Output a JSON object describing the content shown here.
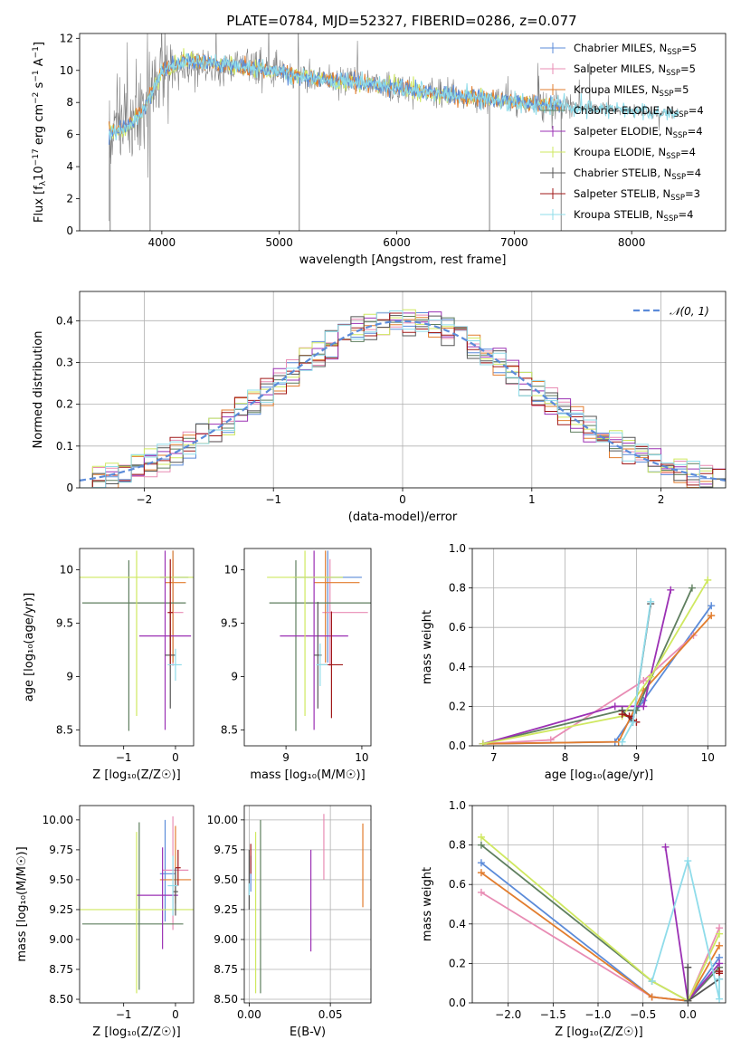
{
  "figure": {
    "title": "PLATE=0784, MJD=52327, FIBERID=0286, z=0.077"
  },
  "colors": {
    "Chabrier MILES": "#5b8bd9",
    "Salpeter MILES": "#e88cb4",
    "Kroupa MILES": "#e27d2e",
    "Chabrier ELODIE": "#5f7f5f",
    "Salpeter ELODIE": "#9b30b4",
    "Kroupa ELODIE": "#cfe860",
    "Chabrier STELIB": "#555555",
    "Salpeter STELIB": "#a01818",
    "Kroupa STELIB": "#8fdcea",
    "data": "#808080",
    "gauss": "#5b8bd9"
  },
  "chart_data": [
    {
      "id": "spectrum",
      "type": "line",
      "title": "PLATE=0784, MJD=52327, FIBERID=0286, z=0.077",
      "xlabel": "wavelength [Angstrom, rest frame]",
      "ylabel_parts": [
        "Flux [f",
        "λ",
        "10",
        "−17",
        " erg cm",
        "−2",
        " s",
        "−1",
        " A",
        "−1",
        "]"
      ],
      "xlim": [
        3300,
        8800
      ],
      "ylim": [
        0,
        12.3
      ],
      "xticks": [
        4000,
        5000,
        6000,
        7000,
        8000
      ],
      "yticks": [
        0,
        2,
        4,
        6,
        8,
        10,
        12
      ],
      "legend_position": "top-right",
      "legend": [
        {
          "name": "Chabrier MILES",
          "nssp": "5"
        },
        {
          "name": "Salpeter MILES",
          "nssp": "5"
        },
        {
          "name": "Kroupa MILES",
          "nssp": "5"
        },
        {
          "name": "Chabrier ELODIE",
          "nssp": "4"
        },
        {
          "name": "Salpeter ELODIE",
          "nssp": "4"
        },
        {
          "name": "Kroupa ELODIE",
          "nssp": "4"
        },
        {
          "name": "Chabrier STELIB",
          "nssp": "4"
        },
        {
          "name": "Salpeter STELIB",
          "nssp": "3"
        },
        {
          "name": "Kroupa STELIB",
          "nssp": "4"
        }
      ],
      "data_trend": {
        "x": [
          3550,
          3700,
          3850,
          4000,
          4200,
          4400,
          4600,
          4800,
          5000,
          5200,
          5400,
          5600,
          5800,
          6000,
          6200,
          6400,
          6600,
          6800,
          7000,
          7200,
          7400,
          7600,
          7800,
          8000,
          8300
        ],
        "y": [
          6.0,
          6.8,
          8.0,
          9.6,
          10.3,
          10.3,
          10.2,
          10.1,
          9.9,
          9.6,
          9.4,
          9.3,
          9.1,
          8.9,
          8.7,
          8.5,
          8.3,
          8.2,
          8.0,
          7.9,
          7.8,
          7.7,
          7.6,
          7.5,
          7.3
        ]
      },
      "model_trend": {
        "x": [
          3550,
          3700,
          3850,
          4000,
          4200,
          4400,
          4600,
          4800,
          5000,
          5200,
          5400,
          5600,
          5800,
          6000,
          6200,
          6400,
          6600,
          6800,
          7000,
          7200,
          7400
        ],
        "y": [
          6.2,
          6.4,
          7.6,
          10.0,
          10.6,
          10.5,
          10.3,
          10.1,
          9.9,
          9.6,
          9.4,
          9.3,
          9.1,
          8.9,
          8.7,
          8.5,
          8.4,
          8.2,
          8.0,
          7.9,
          7.8
        ]
      }
    },
    {
      "id": "residuals",
      "type": "histogram",
      "xlabel": "(data-model)/error",
      "ylabel": "Normed distribution",
      "xlim": [
        -2.5,
        2.5
      ],
      "ylim": [
        0,
        0.47
      ],
      "xticks": [
        -2,
        -1,
        0,
        1,
        2
      ],
      "yticks": [
        0.0,
        0.1,
        0.2,
        0.3,
        0.4
      ],
      "grid": true,
      "legend_position": "top-right",
      "gaussian_label": "𝒩(0, 1)",
      "bin_width": 0.1
    },
    {
      "id": "age-vs-Z",
      "type": "errorbar",
      "xlabel": "Z [log₁₀(Z/Z☉)]",
      "ylabel": "age  [log₁₀(age/yr)]",
      "xlim": [
        -1.85,
        0.35
      ],
      "ylim": [
        8.35,
        10.2
      ],
      "xticks": [
        -1,
        0
      ],
      "yticks": [
        8.5,
        9.0,
        9.5,
        10.0
      ],
      "points": [
        {
          "model": "Chabrier MILES",
          "x": -0.05,
          "y": 9.93,
          "xerr": [
            0.25,
            0.3
          ],
          "yerr": [
            0.8,
            0.25
          ]
        },
        {
          "model": "Salpeter MILES",
          "x": -0.05,
          "y": 9.6,
          "xerr": [
            0.1,
            0.2
          ],
          "yerr": [
            0.5,
            0.5
          ]
        },
        {
          "model": "Kroupa MILES",
          "x": -0.05,
          "y": 9.88,
          "xerr": [
            0.15,
            0.25
          ],
          "yerr": [
            0.75,
            0.3
          ]
        },
        {
          "model": "Chabrier ELODIE",
          "x": -0.9,
          "y": 9.69,
          "xerr": [
            0.9,
            1.1
          ],
          "yerr": [
            1.2,
            0.4
          ]
        },
        {
          "model": "Salpeter ELODIE",
          "x": -0.2,
          "y": 9.38,
          "xerr": [
            0.5,
            0.5
          ],
          "yerr": [
            0.88,
            0.8
          ]
        },
        {
          "model": "Kroupa ELODIE",
          "x": -0.75,
          "y": 9.93,
          "xerr": [
            1.1,
            1.1
          ],
          "yerr": [
            1.3,
            0.25
          ]
        },
        {
          "model": "Chabrier STELIB",
          "x": -0.1,
          "y": 9.2,
          "xerr": [
            0.1,
            0.1
          ],
          "yerr": [
            0.5,
            0.5
          ]
        },
        {
          "model": "Salpeter STELIB",
          "x": -0.1,
          "y": 9.6,
          "xerr": [
            0.05,
            0.05
          ],
          "yerr": [
            0.5,
            0.5
          ]
        },
        {
          "model": "Kroupa STELIB",
          "x": 0.0,
          "y": 9.11,
          "xerr": [
            0.15,
            0.12
          ],
          "yerr": [
            0.15,
            0.15
          ]
        }
      ]
    },
    {
      "id": "age-vs-mass",
      "type": "errorbar",
      "xlabel": "mass [log₁₀(M/M☉)]",
      "xlim": [
        8.45,
        10.12
      ],
      "ylim": [
        8.35,
        10.2
      ],
      "xticks": [
        9,
        10
      ],
      "yticks": [
        8.5,
        9.0,
        9.5,
        10.0
      ],
      "points": [
        {
          "model": "Chabrier MILES",
          "x": 9.55,
          "y": 9.93,
          "xerr": [
            0.45,
            0.45
          ],
          "yerr": [
            0.8,
            0.25
          ]
        },
        {
          "model": "Salpeter MILES",
          "x": 9.58,
          "y": 9.6,
          "xerr": [
            0.1,
            0.5
          ],
          "yerr": [
            0.5,
            0.5
          ]
        },
        {
          "model": "Kroupa MILES",
          "x": 9.52,
          "y": 9.88,
          "xerr": [
            0.15,
            0.45
          ],
          "yerr": [
            0.75,
            0.3
          ]
        },
        {
          "model": "Chabrier ELODIE",
          "x": 9.13,
          "y": 9.69,
          "xerr": [
            0.35,
            1.0
          ],
          "yerr": [
            1.2,
            0.4
          ]
        },
        {
          "model": "Salpeter ELODIE",
          "x": 9.37,
          "y": 9.38,
          "xerr": [
            0.45,
            0.45
          ],
          "yerr": [
            0.88,
            0.8
          ]
        },
        {
          "model": "Kroupa ELODIE",
          "x": 9.25,
          "y": 9.93,
          "xerr": [
            0.5,
            0.5
          ],
          "yerr": [
            1.3,
            0.25
          ]
        },
        {
          "model": "Chabrier STELIB",
          "x": 9.42,
          "y": 9.2,
          "xerr": [
            0.05,
            0.05
          ],
          "yerr": [
            0.5,
            0.5
          ]
        },
        {
          "model": "Salpeter STELIB",
          "x": 9.6,
          "y": 9.11,
          "xerr": [
            0.15,
            0.15
          ],
          "yerr": [
            0.5,
            0.5
          ]
        },
        {
          "model": "Kroupa STELIB",
          "x": 9.45,
          "y": 9.11,
          "xerr": [
            0.05,
            0.1
          ],
          "yerr": [
            0.2,
            0.2
          ]
        }
      ]
    },
    {
      "id": "massweight-vs-age",
      "type": "line",
      "xlabel": "age  [log₁₀(age/yr)]",
      "ylabel": "mass weight",
      "xlim": [
        6.7,
        10.25
      ],
      "ylim": [
        0,
        1.0
      ],
      "xticks": [
        7,
        8,
        9,
        10
      ],
      "yticks": [
        0.0,
        0.2,
        0.4,
        0.6,
        0.8,
        1.0
      ],
      "grid": true,
      "series": [
        {
          "model": "Chabrier MILES",
          "x": [
            6.85,
            8.7,
            9.1,
            10.05
          ],
          "y": [
            0.01,
            0.02,
            0.23,
            0.71
          ]
        },
        {
          "model": "Salpeter MILES",
          "x": [
            6.85,
            7.8,
            9.1,
            9.8
          ],
          "y": [
            0.01,
            0.03,
            0.33,
            0.56
          ]
        },
        {
          "model": "Kroupa MILES",
          "x": [
            6.85,
            8.75,
            9.1,
            10.05
          ],
          "y": [
            0.01,
            0.02,
            0.28,
            0.66
          ]
        },
        {
          "model": "Chabrier ELODIE",
          "x": [
            6.85,
            8.8,
            9.0,
            9.78
          ],
          "y": [
            0.01,
            0.18,
            0.18,
            0.8
          ]
        },
        {
          "model": "Salpeter ELODIE",
          "x": [
            6.85,
            8.7,
            9.1,
            9.48
          ],
          "y": [
            0.01,
            0.2,
            0.2,
            0.79
          ]
        },
        {
          "model": "Kroupa ELODIE",
          "x": [
            6.85,
            8.8,
            9.2,
            10.0
          ],
          "y": [
            0.01,
            0.15,
            0.35,
            0.84
          ]
        },
        {
          "model": "Chabrier STELIB",
          "x": [
            8.8,
            8.95,
            9.2
          ],
          "y": [
            0.18,
            0.12,
            0.72
          ]
        },
        {
          "model": "Salpeter STELIB",
          "x": [
            8.8,
            8.9,
            9.0
          ],
          "y": [
            0.16,
            0.15,
            0.12
          ]
        },
        {
          "model": "Kroupa STELIB",
          "x": [
            8.8,
            8.95,
            9.2
          ],
          "y": [
            0.02,
            0.12,
            0.73
          ]
        }
      ]
    },
    {
      "id": "mass-vs-Z",
      "type": "errorbar",
      "xlabel": "Z [log₁₀(Z/Z☉)]",
      "ylabel": "mass [log₁₀(M/M☉)]",
      "xlim": [
        -1.85,
        0.35
      ],
      "ylim": [
        8.47,
        10.12
      ],
      "xticks": [
        -1,
        0
      ],
      "yticks": [
        8.5,
        8.75,
        9.0,
        9.25,
        9.5,
        9.75,
        10.0
      ],
      "points": [
        {
          "model": "Chabrier MILES",
          "x": -0.2,
          "y": 9.55,
          "xerr": [
            0.1,
            0.2
          ],
          "yerr": [
            0.4,
            0.45
          ]
        },
        {
          "model": "Salpeter MILES",
          "x": -0.05,
          "y": 9.58,
          "xerr": [
            0.2,
            0.3
          ],
          "yerr": [
            0.5,
            0.45
          ]
        },
        {
          "model": "Kroupa MILES",
          "x": 0.0,
          "y": 9.5,
          "xerr": [
            0.3,
            0.3
          ],
          "yerr": [
            0.2,
            0.45
          ]
        },
        {
          "model": "Chabrier ELODIE",
          "x": -0.7,
          "y": 9.13,
          "xerr": [
            1.1,
            0.85
          ],
          "yerr": [
            0.55,
            0.85
          ]
        },
        {
          "model": "Salpeter ELODIE",
          "x": -0.25,
          "y": 9.37,
          "xerr": [
            0.5,
            0.3
          ],
          "yerr": [
            0.45,
            0.4
          ]
        },
        {
          "model": "Kroupa ELODIE",
          "x": -0.75,
          "y": 9.25,
          "xerr": [
            1.1,
            1.1
          ],
          "yerr": [
            0.7,
            0.65
          ]
        },
        {
          "model": "Chabrier STELIB",
          "x": 0.0,
          "y": 9.4,
          "xerr": [
            0.05,
            0.05
          ],
          "yerr": [
            0.2,
            0.2
          ]
        },
        {
          "model": "Salpeter STELIB",
          "x": 0.05,
          "y": 9.6,
          "xerr": [
            0.05,
            0.05
          ],
          "yerr": [
            0.15,
            0.15
          ]
        },
        {
          "model": "Kroupa STELIB",
          "x": -0.05,
          "y": 9.45,
          "xerr": [
            0.1,
            0.1
          ],
          "yerr": [
            0.25,
            0.25
          ]
        }
      ]
    },
    {
      "id": "mass-vs-EBV",
      "type": "errorbar",
      "xlabel": "E(B-V)",
      "xlim": [
        -0.003,
        0.075
      ],
      "ylim": [
        8.47,
        10.12
      ],
      "xticks": [
        0.0,
        0.05
      ],
      "xtick_labels": [
        "0.00",
        "0.05"
      ],
      "yticks": [
        8.5,
        8.75,
        9.0,
        9.25,
        9.5,
        9.75,
        10.0
      ],
      "grid": true,
      "points": [
        {
          "model": "Chabrier MILES",
          "x": 0.001,
          "y": 9.55,
          "yerr": [
            0.15,
            0.15
          ]
        },
        {
          "model": "Salpeter MILES",
          "x": 0.046,
          "y": 9.75,
          "yerr": [
            0.25,
            0.3
          ]
        },
        {
          "model": "Kroupa MILES",
          "x": 0.07,
          "y": 9.62,
          "yerr": [
            0.35,
            0.35
          ]
        },
        {
          "model": "Chabrier ELODIE",
          "x": 0.007,
          "y": 9.25,
          "yerr": [
            0.7,
            0.75
          ]
        },
        {
          "model": "Salpeter ELODIE",
          "x": 0.038,
          "y": 9.35,
          "yerr": [
            0.45,
            0.4
          ]
        },
        {
          "model": "Kroupa ELODIE",
          "x": 0.004,
          "y": 9.2,
          "yerr": [
            0.65,
            0.7
          ]
        },
        {
          "model": "Chabrier STELIB",
          "x": 0.0,
          "y": 9.5,
          "yerr": [
            0.25,
            0.25
          ]
        },
        {
          "model": "Salpeter STELIB",
          "x": 0.001,
          "y": 9.65,
          "yerr": [
            0.1,
            0.15
          ]
        },
        {
          "model": "Kroupa STELIB",
          "x": 0.0,
          "y": 9.42,
          "yerr": [
            0.05,
            0.05
          ]
        }
      ]
    },
    {
      "id": "massweight-vs-Z",
      "type": "line",
      "xlabel": "Z [log₁₀(Z/Z☉)]",
      "ylabel": "mass weight",
      "xlim": [
        -2.4,
        0.42
      ],
      "ylim": [
        0,
        1.0
      ],
      "xticks": [
        -2.0,
        -1.5,
        -1.0,
        -0.5,
        0.0
      ],
      "xtick_labels": [
        "−2.0",
        "−1.5",
        "−1.0",
        "−0.5",
        "0.0"
      ],
      "yticks": [
        0.0,
        0.2,
        0.4,
        0.6,
        0.8,
        1.0
      ],
      "grid": true,
      "series": [
        {
          "model": "Chabrier MILES",
          "x": [
            -2.3,
            -0.4,
            0.0,
            0.35
          ],
          "y": [
            0.71,
            0.03,
            0.01,
            0.23
          ]
        },
        {
          "model": "Salpeter MILES",
          "x": [
            -2.3,
            -0.4,
            0.0,
            0.35
          ],
          "y": [
            0.56,
            0.03,
            0.01,
            0.38
          ]
        },
        {
          "model": "Kroupa MILES",
          "x": [
            -2.3,
            -0.4,
            0.0,
            0.35
          ],
          "y": [
            0.66,
            0.03,
            0.01,
            0.29
          ]
        },
        {
          "model": "Chabrier ELODIE",
          "x": [
            -2.3,
            -0.4,
            0.0,
            0.35
          ],
          "y": [
            0.8,
            0.11,
            0.01,
            0.18
          ]
        },
        {
          "model": "Salpeter ELODIE",
          "x": [
            -0.25,
            0.0,
            0.35
          ],
          "y": [
            0.79,
            0.01,
            0.2
          ]
        },
        {
          "model": "Kroupa ELODIE",
          "x": [
            -2.3,
            -0.4,
            0.0,
            0.35
          ],
          "y": [
            0.84,
            0.11,
            0.01,
            0.35
          ]
        },
        {
          "model": "Chabrier STELIB",
          "x": [
            0.0,
            0.0,
            0.35
          ],
          "y": [
            0.18,
            0.01,
            0.12
          ]
        },
        {
          "model": "Salpeter STELIB",
          "x": [
            0.35,
            0.35
          ],
          "y": [
            0.16,
            0.15
          ]
        },
        {
          "model": "Kroupa STELIB",
          "x": [
            -0.4,
            0.0,
            0.35,
            0.35
          ],
          "y": [
            0.11,
            0.72,
            0.02,
            0.12
          ]
        }
      ]
    }
  ]
}
